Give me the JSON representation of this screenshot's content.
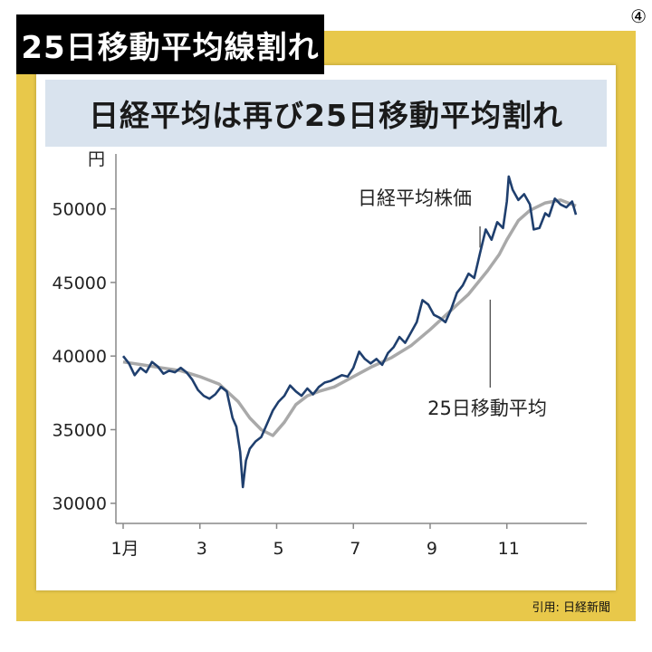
{
  "banner": {
    "title": "25日移動平均線割れ",
    "badge": "④"
  },
  "credit": "引用: 日経新聞",
  "chart_data": {
    "type": "line",
    "title": "日経平均は再び25日移動平均割れ",
    "ylabel": "円",
    "ylim": [
      29000,
      52500
    ],
    "xlim": [
      0,
      11.8
    ],
    "x_ticks": [
      {
        "x": 0,
        "label": "1月"
      },
      {
        "x": 2,
        "label": "3"
      },
      {
        "x": 4,
        "label": "5"
      },
      {
        "x": 6,
        "label": "7"
      },
      {
        "x": 8,
        "label": "9"
      },
      {
        "x": 10,
        "label": "11"
      }
    ],
    "y_ticks": [
      30000,
      35000,
      40000,
      45000,
      50000
    ],
    "y_tick_labels": [
      "30000",
      "35000",
      "40000",
      "45000",
      "50000"
    ],
    "annotations": [
      {
        "label": "日経平均株価",
        "series": "price"
      },
      {
        "label": "25日移動平均",
        "series": "ma25"
      }
    ],
    "colors": {
      "price": "#1f3f6e",
      "ma25": "#a9a9a9",
      "axis": "#888888"
    },
    "series": [
      {
        "id": "price",
        "name": "日経平均株価",
        "points": [
          [
            0.0,
            40000
          ],
          [
            0.15,
            39500
          ],
          [
            0.3,
            38700
          ],
          [
            0.45,
            39200
          ],
          [
            0.6,
            38900
          ],
          [
            0.75,
            39600
          ],
          [
            0.9,
            39300
          ],
          [
            1.05,
            38800
          ],
          [
            1.2,
            39000
          ],
          [
            1.35,
            38900
          ],
          [
            1.5,
            39200
          ],
          [
            1.65,
            38900
          ],
          [
            1.8,
            38400
          ],
          [
            1.95,
            37700
          ],
          [
            2.1,
            37300
          ],
          [
            2.25,
            37100
          ],
          [
            2.4,
            37400
          ],
          [
            2.55,
            37900
          ],
          [
            2.7,
            37600
          ],
          [
            2.85,
            35800
          ],
          [
            2.95,
            35200
          ],
          [
            3.05,
            33500
          ],
          [
            3.12,
            31100
          ],
          [
            3.2,
            32900
          ],
          [
            3.3,
            33700
          ],
          [
            3.45,
            34200
          ],
          [
            3.6,
            34500
          ],
          [
            3.75,
            35400
          ],
          [
            3.9,
            36300
          ],
          [
            4.05,
            36900
          ],
          [
            4.2,
            37300
          ],
          [
            4.35,
            38000
          ],
          [
            4.5,
            37600
          ],
          [
            4.65,
            37300
          ],
          [
            4.8,
            37800
          ],
          [
            4.95,
            37400
          ],
          [
            5.1,
            37900
          ],
          [
            5.25,
            38200
          ],
          [
            5.4,
            38300
          ],
          [
            5.55,
            38500
          ],
          [
            5.7,
            38700
          ],
          [
            5.85,
            38600
          ],
          [
            6.0,
            39200
          ],
          [
            6.15,
            40300
          ],
          [
            6.3,
            39800
          ],
          [
            6.45,
            39500
          ],
          [
            6.6,
            39800
          ],
          [
            6.75,
            39400
          ],
          [
            6.9,
            40200
          ],
          [
            7.05,
            40600
          ],
          [
            7.2,
            41300
          ],
          [
            7.35,
            40900
          ],
          [
            7.5,
            41600
          ],
          [
            7.65,
            42300
          ],
          [
            7.8,
            43800
          ],
          [
            7.95,
            43500
          ],
          [
            8.1,
            42800
          ],
          [
            8.25,
            42600
          ],
          [
            8.4,
            42300
          ],
          [
            8.55,
            43200
          ],
          [
            8.7,
            44300
          ],
          [
            8.85,
            44800
          ],
          [
            9.0,
            45600
          ],
          [
            9.15,
            45300
          ],
          [
            9.3,
            47000
          ],
          [
            9.45,
            48600
          ],
          [
            9.6,
            47900
          ],
          [
            9.75,
            49100
          ],
          [
            9.9,
            48700
          ],
          [
            10.0,
            50500
          ],
          [
            10.05,
            52200
          ],
          [
            10.15,
            51300
          ],
          [
            10.3,
            50600
          ],
          [
            10.45,
            51000
          ],
          [
            10.6,
            50300
          ],
          [
            10.7,
            48600
          ],
          [
            10.85,
            48700
          ],
          [
            11.0,
            49700
          ],
          [
            11.1,
            49500
          ],
          [
            11.25,
            50700
          ],
          [
            11.4,
            50300
          ],
          [
            11.55,
            50100
          ],
          [
            11.7,
            50500
          ],
          [
            11.8,
            49600
          ]
        ]
      },
      {
        "id": "ma25",
        "name": "25日移動平均",
        "points": [
          [
            0.0,
            39600
          ],
          [
            0.5,
            39400
          ],
          [
            1.0,
            39200
          ],
          [
            1.5,
            39000
          ],
          [
            2.0,
            38600
          ],
          [
            2.5,
            38100
          ],
          [
            3.0,
            36900
          ],
          [
            3.3,
            35800
          ],
          [
            3.6,
            35000
          ],
          [
            3.9,
            34600
          ],
          [
            4.2,
            35500
          ],
          [
            4.5,
            36700
          ],
          [
            4.8,
            37300
          ],
          [
            5.1,
            37600
          ],
          [
            5.5,
            37900
          ],
          [
            6.0,
            38600
          ],
          [
            6.5,
            39300
          ],
          [
            7.0,
            39900
          ],
          [
            7.5,
            40700
          ],
          [
            8.0,
            41800
          ],
          [
            8.5,
            43000
          ],
          [
            9.0,
            44200
          ],
          [
            9.5,
            45800
          ],
          [
            9.8,
            46900
          ],
          [
            10.0,
            47900
          ],
          [
            10.3,
            49200
          ],
          [
            10.6,
            49900
          ],
          [
            11.0,
            50400
          ],
          [
            11.4,
            50600
          ],
          [
            11.8,
            50200
          ]
        ]
      }
    ]
  }
}
